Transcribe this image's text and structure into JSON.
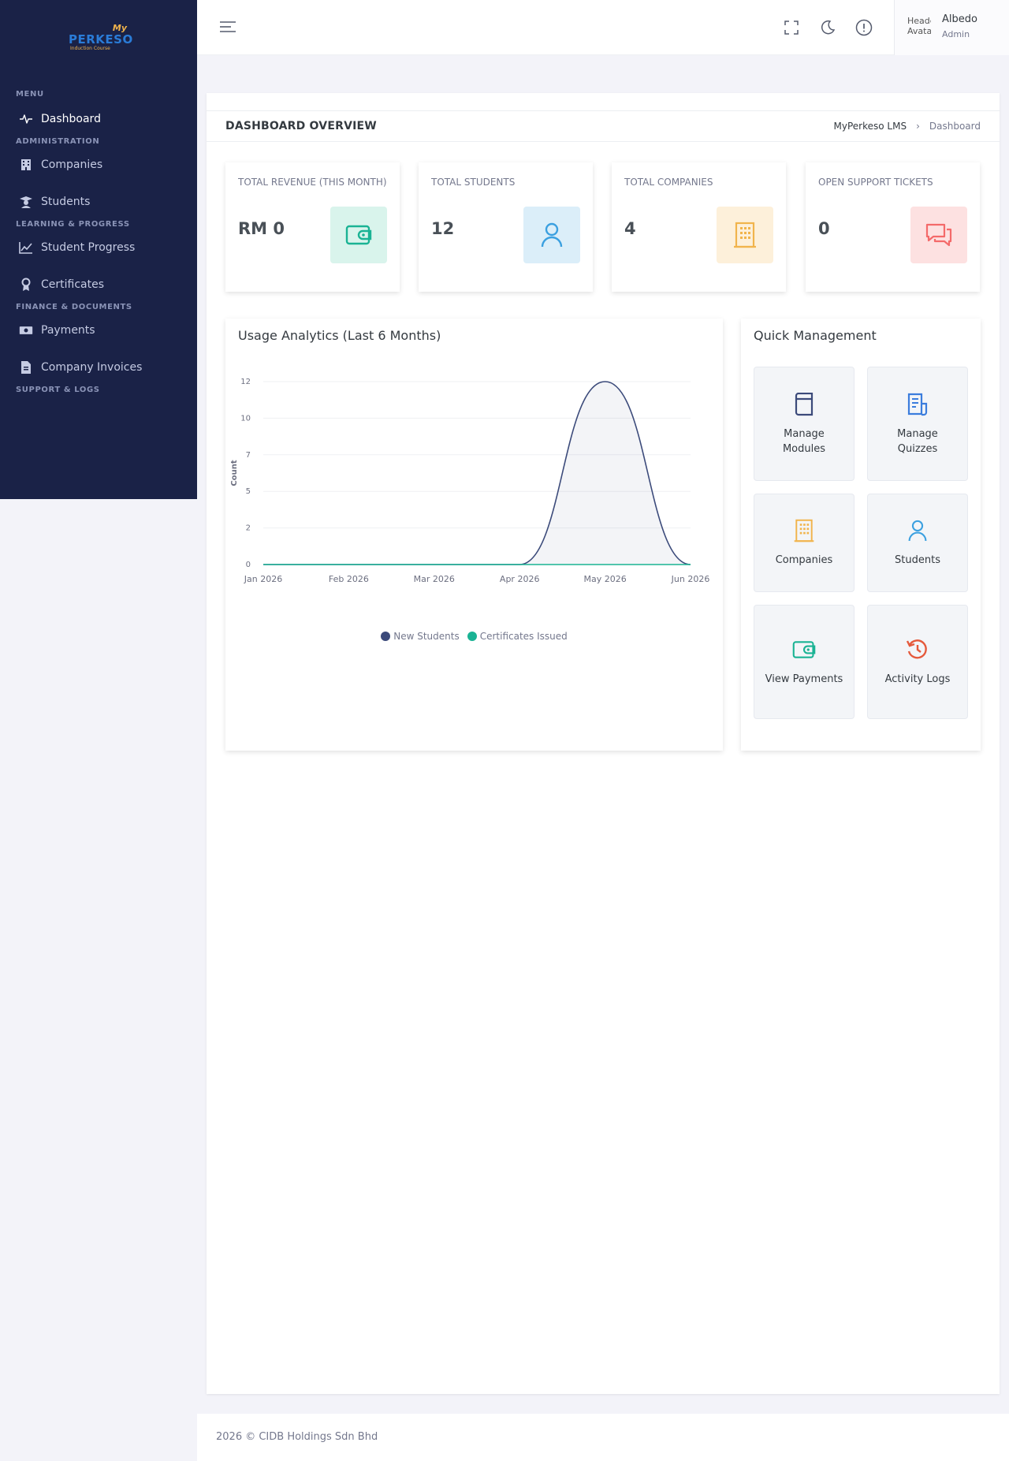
{
  "logo": {
    "top": "My",
    "main": "PERKESO",
    "sub": "Induction Course"
  },
  "sidebar": {
    "sections": [
      {
        "title": "MENU",
        "items": [
          {
            "label": "Dashboard",
            "icon": "activity-icon"
          }
        ]
      },
      {
        "title": "ADMINISTRATION",
        "items": [
          {
            "label": "Companies",
            "icon": "building-icon"
          },
          {
            "label": "Students",
            "icon": "graduate-icon"
          }
        ]
      },
      {
        "title": "LEARNING & PROGRESS",
        "items": [
          {
            "label": "Student Progress",
            "icon": "line-chart-icon"
          },
          {
            "label": "Certificates",
            "icon": "award-icon"
          }
        ]
      },
      {
        "title": "FINANCE & DOCUMENTS",
        "items": [
          {
            "label": "Payments",
            "icon": "money-icon"
          },
          {
            "label": "Company Invoices",
            "icon": "invoice-icon"
          }
        ]
      },
      {
        "title": "SUPPORT & LOGS",
        "items": []
      }
    ]
  },
  "topbar": {
    "user": {
      "name": "Albedo",
      "role": "Admin",
      "avatar_alt": "Header Avatar"
    }
  },
  "page": {
    "title": "DASHBOARD OVERVIEW",
    "breadcrumb": {
      "root": "MyPerkeso LMS",
      "separator": "›",
      "current": "Dashboard"
    }
  },
  "stats": [
    {
      "label": "TOTAL REVENUE (THIS MONTH)",
      "value": "RM 0",
      "icon": "wallet-icon",
      "color": "#34c38f",
      "bg": "#d9f4ec"
    },
    {
      "label": "TOTAL STUDENTS",
      "value": "12",
      "icon": "user-icon",
      "color": "#3ba0e0",
      "bg": "#dbeef9"
    },
    {
      "label": "TOTAL COMPANIES",
      "value": "4",
      "icon": "building-icon",
      "color": "#f1b44c",
      "bg": "#fdf0da"
    },
    {
      "label": "OPEN SUPPORT TICKETS",
      "value": "0",
      "icon": "chat-icon",
      "color": "#f46a6a",
      "bg": "#fde1e1"
    }
  ],
  "chart": {
    "title": "Usage Analytics (Last 6 Months)"
  },
  "chart_data": {
    "type": "area",
    "x": [
      "Jan 2026",
      "Feb 2026",
      "Mar 2026",
      "Apr 2026",
      "May 2026",
      "Jun 2026"
    ],
    "series": [
      {
        "name": "New Students",
        "values": [
          0,
          0,
          0,
          0,
          12,
          0
        ],
        "color": "#3b4a7a"
      },
      {
        "name": "Certificates Issued",
        "values": [
          0,
          0,
          0,
          0,
          0,
          0
        ],
        "color": "#1ab394"
      }
    ],
    "ylabel": "Count",
    "yticks": [
      "0",
      "2",
      "5",
      "7",
      "10",
      "12"
    ],
    "ylim": [
      0,
      12
    ],
    "grid": true,
    "legend": "bottom"
  },
  "quick": {
    "title": "Quick Management",
    "tiles": [
      {
        "label": "Manage Modules",
        "icon": "book-icon",
        "color": "#3b4a7a"
      },
      {
        "label": "Manage Quizzes",
        "icon": "quiz-icon",
        "color": "#3b7ddd"
      },
      {
        "label": "Companies",
        "icon": "building-icon",
        "color": "#f1b44c"
      },
      {
        "label": "Students",
        "icon": "user-icon",
        "color": "#3ba0e0"
      },
      {
        "label": "View Payments",
        "icon": "wallet-icon",
        "color": "#1ab394"
      },
      {
        "label": "Activity Logs",
        "icon": "history-icon",
        "color": "#e55a3c"
      }
    ]
  },
  "footer": {
    "text": "2026 © CIDB Holdings Sdn Bhd"
  }
}
